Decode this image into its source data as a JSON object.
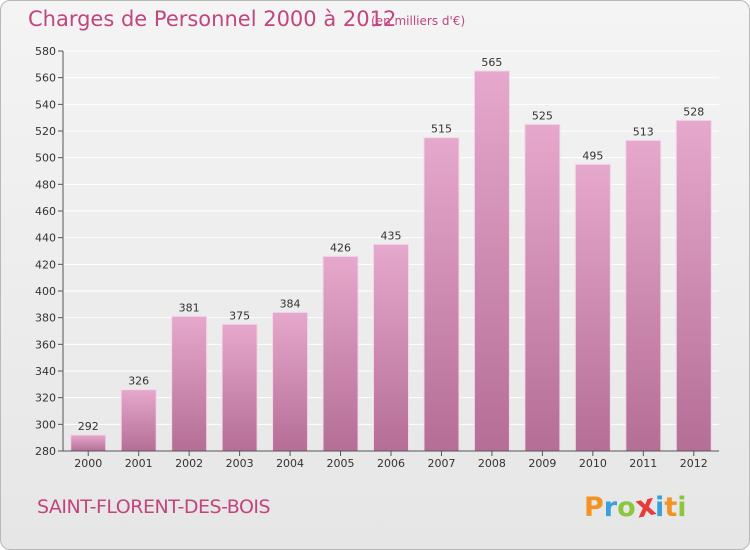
{
  "header": {
    "title": "Charges de Personnel 2000 à 2012",
    "subtitle": "(en milliers d'€)"
  },
  "footer": {
    "town": "SAINT-FLORENT-DES-BOIS"
  },
  "brand": {
    "letters": [
      "P",
      "r",
      "o",
      "x",
      "i",
      "t",
      "i"
    ],
    "colors": [
      "#f39323",
      "#3aa0d8",
      "#8cc63f",
      "#e63c3c",
      "#3aa0d8",
      "#f39323",
      "#8cc63f"
    ]
  },
  "colors": {
    "title": "#c2457e",
    "bar_top": "#e6a8cc",
    "bar_bottom": "#b56e96",
    "grid": "#ffffff"
  },
  "chart_data": {
    "type": "bar",
    "title": "Charges de Personnel 2000 à 2012",
    "subtitle": "(en milliers d'€)",
    "categories": [
      "2000",
      "2001",
      "2002",
      "2003",
      "2004",
      "2005",
      "2006",
      "2007",
      "2008",
      "2009",
      "2010",
      "2011",
      "2012"
    ],
    "values": [
      292,
      326,
      381,
      375,
      384,
      426,
      435,
      515,
      565,
      525,
      495,
      513,
      528
    ],
    "ylim": [
      280,
      580
    ],
    "yticks": [
      280,
      300,
      320,
      340,
      360,
      380,
      400,
      420,
      440,
      460,
      480,
      500,
      520,
      540,
      560,
      580
    ],
    "grid": true,
    "data_labels": true
  }
}
